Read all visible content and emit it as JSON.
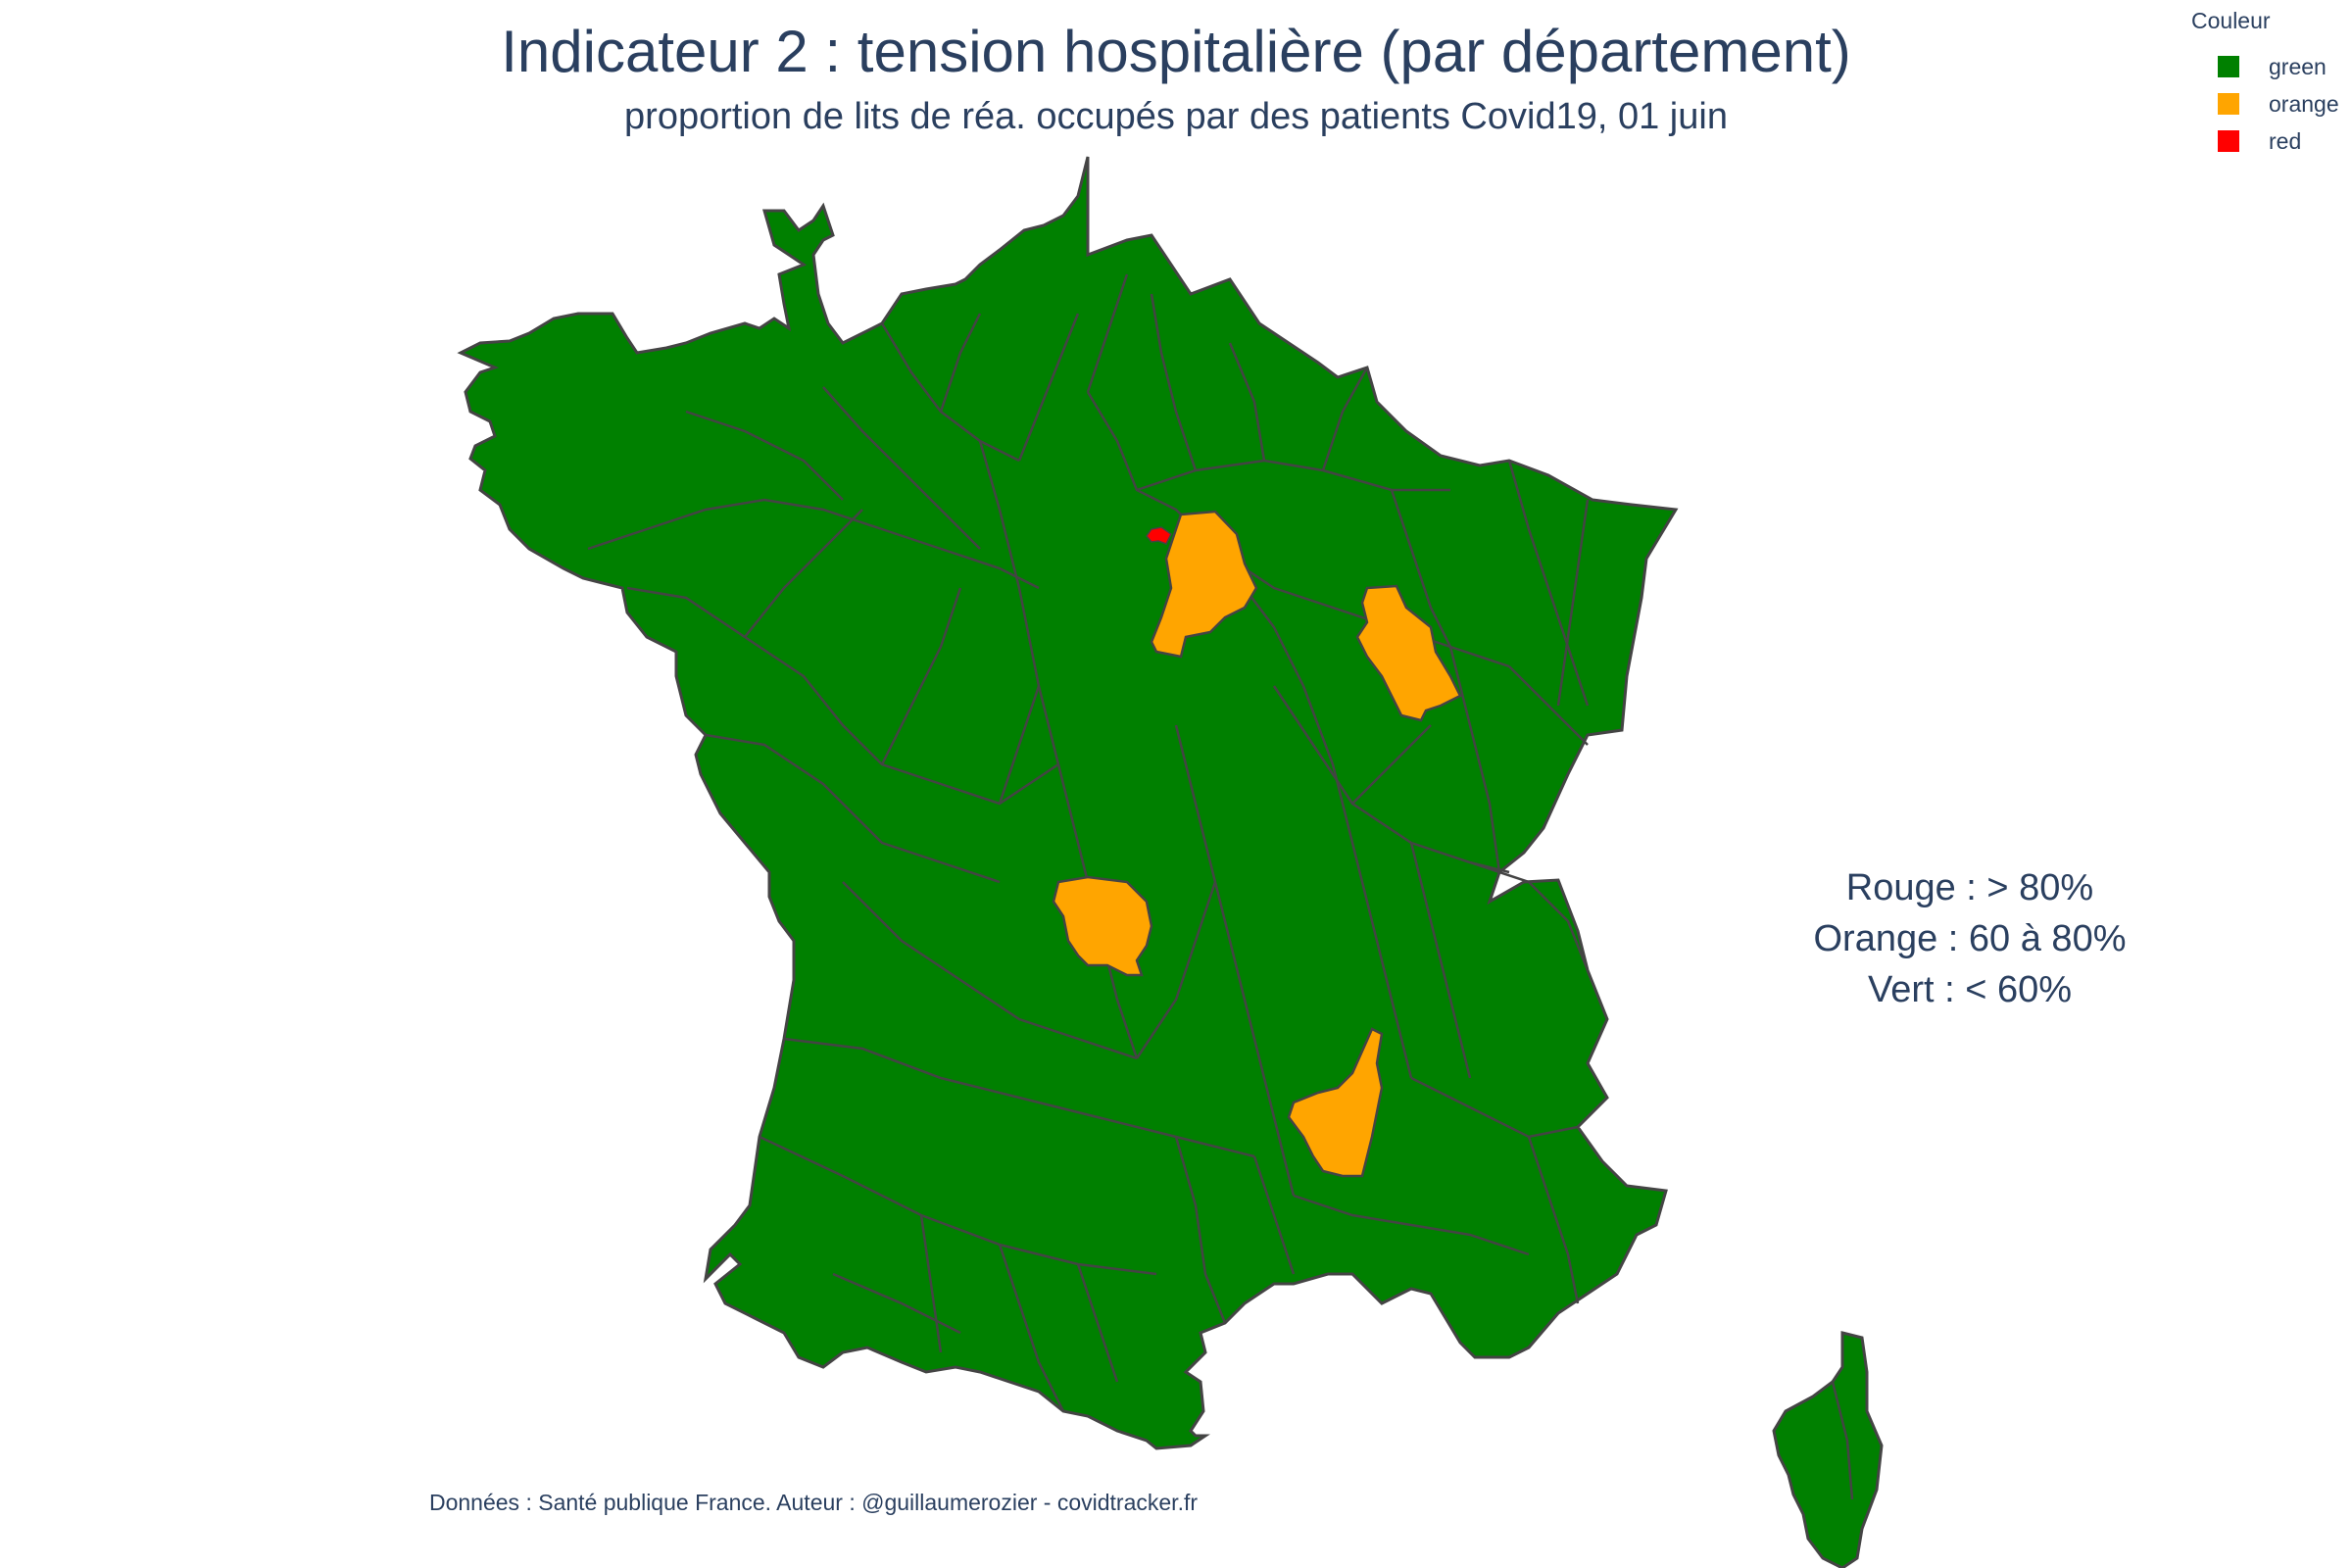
{
  "title": "Indicateur 2 : tension hospitalière (par département)",
  "subtitle": "proportion de lits de réa. occupés par des patients Covid19, 01 juin",
  "legend": {
    "title": "Couleur",
    "items": [
      {
        "label": "green",
        "color": "#008000"
      },
      {
        "label": "orange",
        "color": "#FFA500"
      },
      {
        "label": "red",
        "color": "#FF0000"
      }
    ]
  },
  "thresholds": {
    "rouge": "Rouge : > 80%",
    "orange": "Orange : 60 à 80%",
    "vert": "Vert : < 60%"
  },
  "footer": "Données : Santé publique France. Auteur : @guillaumerozier - covidtracker.fr",
  "map_style": {
    "border_color": "#444444",
    "default_fill": "#008000"
  }
}
